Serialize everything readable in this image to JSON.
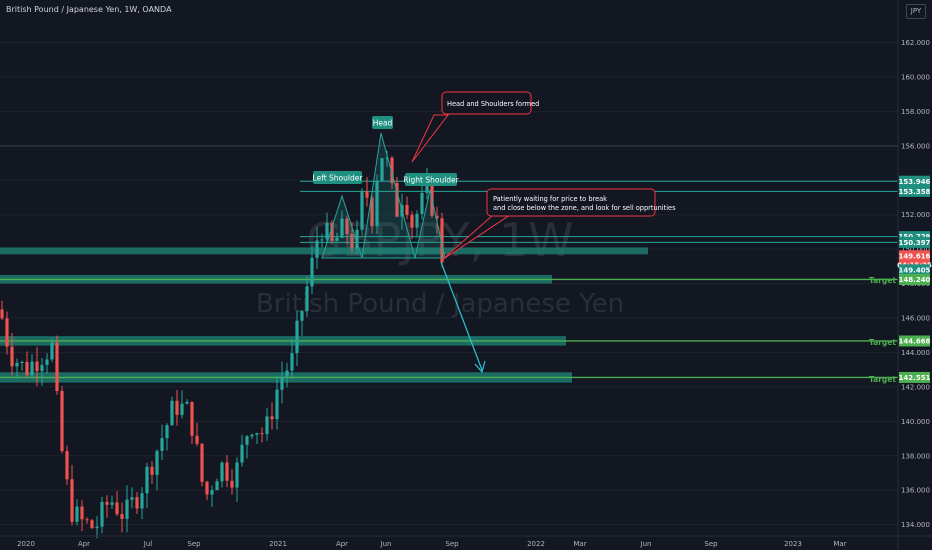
{
  "header": {
    "title": "British Pound / Japanese Yen, 1W, OANDA",
    "currency": "JPY"
  },
  "watermark": {
    "symbol": "GBPJPY, 1W",
    "name": "British Pound / Japanese Yen"
  },
  "colors": {
    "background": "#131722",
    "up": "#26a69a",
    "down": "#ef5350",
    "zone": "#1f7a6e",
    "target": "#4caf50",
    "annotation": "#f23645",
    "arrow": "#2ac3d3"
  },
  "annotations": {
    "head": "Head",
    "left_shoulder": "Left Shoulder",
    "right_shoulder": "Right Shoulder",
    "note1": "Head and Shoulders formed",
    "note2_line1": "Patiently waiting for price to break",
    "note2_line2": "and close below the zone, and look for sell opprtunities",
    "target1": "Target",
    "target2": "Target",
    "target3": "Target"
  },
  "chart_data": {
    "type": "candlestick",
    "title": "British Pound / Japanese Yen, 1W, OANDA",
    "y_axis": {
      "min": 133.4,
      "max": 163.6,
      "ticks": [
        "162.000",
        "160.000",
        "158.000",
        "156.000",
        "154.000",
        "152.000",
        "150.000",
        "148.000",
        "146.000",
        "144.000",
        "142.000",
        "140.000",
        "138.000",
        "136.000",
        "134.000"
      ]
    },
    "x_axis": {
      "ticks": [
        "2020",
        "Apr",
        "Jul",
        "Sep",
        "2021",
        "Apr",
        "Jun",
        "Sep",
        "2022",
        "Mar",
        "Jun",
        "Sep",
        "2023",
        "Mar"
      ]
    },
    "price_tags": [
      {
        "label": "153.946",
        "value": 153.946,
        "color": "#1f8f80"
      },
      {
        "label": "153.358",
        "value": 153.358,
        "color": "#1f8f80"
      },
      {
        "label": "150.729",
        "value": 150.729,
        "color": "#1f8f80"
      },
      {
        "label": "150.397",
        "value": 150.397,
        "color": "#1f8f80"
      },
      {
        "label": "149.616",
        "value": 149.616,
        "color": "#ef5350"
      },
      {
        "label": "04:15:25",
        "value": 149.1,
        "color": "#ef5350"
      },
      {
        "label": "149.405",
        "value": 148.8,
        "color": "#1f8f80"
      },
      {
        "label": "148.240",
        "value": 148.24,
        "color": "#4caf50"
      },
      {
        "label": "144.668",
        "value": 144.668,
        "color": "#4caf50"
      },
      {
        "label": "142.551",
        "value": 142.551,
        "color": "#4caf50"
      }
    ],
    "levels": [
      {
        "name": "right-shoulder-high",
        "value": 153.946
      },
      {
        "name": "right-shoulder-low",
        "value": 153.358
      },
      {
        "name": "zone-top",
        "value": 150.729
      },
      {
        "name": "zone-bottom",
        "value": 150.397
      },
      {
        "name": "resistance-top",
        "value": 156.0
      }
    ],
    "target_zones": [
      148.24,
      144.668,
      142.551
    ]
  }
}
